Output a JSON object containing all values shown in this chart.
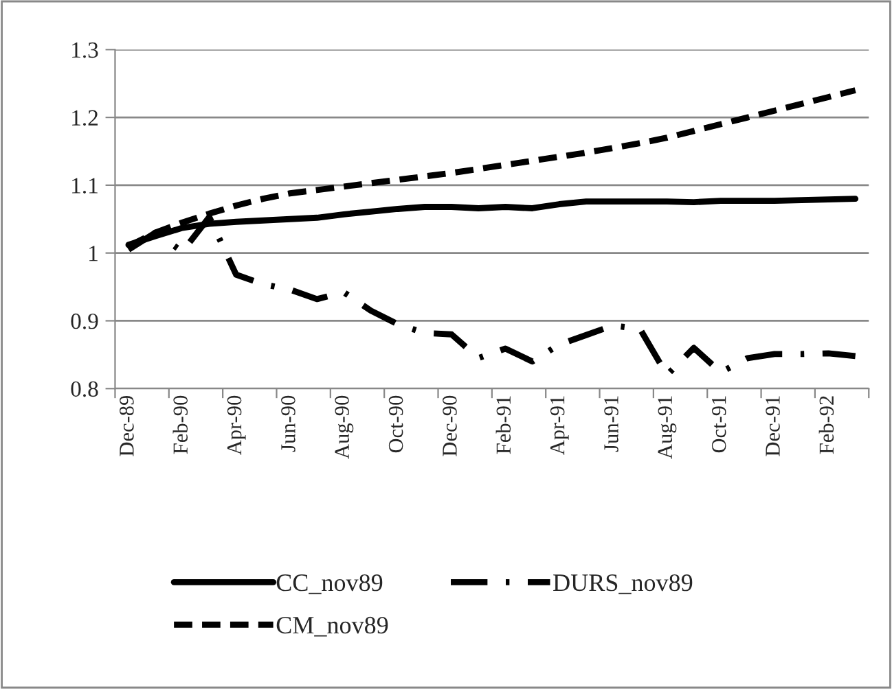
{
  "chart_data": {
    "type": "line",
    "categories": [
      "Dec-89",
      null,
      "Feb-90",
      null,
      "Apr-90",
      null,
      "Jun-90",
      null,
      "Aug-90",
      null,
      "Oct-90",
      null,
      "Dec-90",
      null,
      "Feb-91",
      null,
      "Apr-91",
      null,
      "Jun-91",
      null,
      "Aug-91",
      null,
      "Oct-91",
      null,
      "Dec-91",
      null,
      "Feb-92",
      null
    ],
    "series": [
      {
        "name": "CC_nov89",
        "color": "#000000",
        "line_style": "solid",
        "values": [
          1.012,
          1.025,
          1.037,
          1.043,
          1.046,
          1.048,
          1.05,
          1.052,
          1.057,
          1.061,
          1.065,
          1.068,
          1.068,
          1.066,
          1.068,
          1.066,
          1.072,
          1.076,
          1.076,
          1.076,
          1.076,
          1.075,
          1.077,
          1.077,
          1.077,
          1.078,
          1.079,
          1.08
        ]
      },
      {
        "name": "CM_nov89",
        "color": "#000000",
        "line_style": "dashed",
        "values": [
          1.01,
          1.03,
          1.045,
          1.058,
          1.07,
          1.08,
          1.088,
          1.093,
          1.098,
          1.103,
          1.108,
          1.113,
          1.118,
          1.124,
          1.13,
          1.136,
          1.142,
          1.148,
          1.155,
          1.162,
          1.17,
          1.18,
          1.19,
          1.2,
          1.21,
          1.22,
          1.23,
          1.24
        ]
      },
      {
        "name": "DURS_nov89",
        "color": "#000000",
        "line_style": "dashdot",
        "values": [
          1.005,
          1.03,
          1.002,
          1.053,
          0.968,
          0.954,
          0.946,
          0.932,
          0.942,
          0.915,
          0.895,
          0.882,
          0.88,
          0.845,
          0.859,
          0.84,
          0.865,
          0.879,
          0.893,
          0.888,
          0.82,
          0.86,
          0.824,
          0.845,
          0.851,
          0.851,
          0.852,
          0.848
        ]
      }
    ],
    "ylim": [
      0.8,
      1.3
    ],
    "yticks": [
      0.8,
      0.9,
      1,
      1.1,
      1.2,
      1.3
    ],
    "grid": "y",
    "legend": "bottom"
  }
}
